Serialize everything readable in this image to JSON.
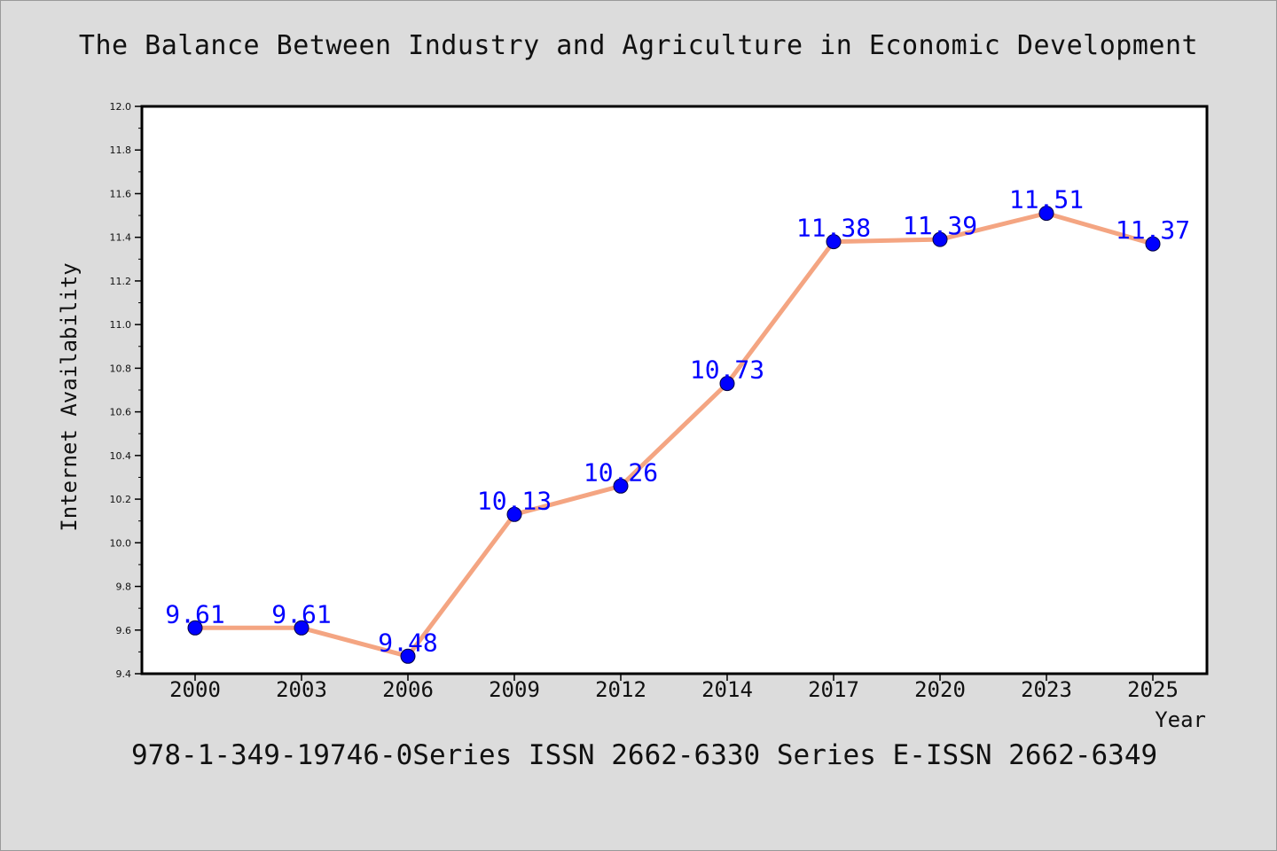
{
  "chart_data": {
    "type": "line",
    "title": "The Balance Between Industry and Agriculture in Economic Development",
    "xlabel": "Year",
    "ylabel": "Internet Availability",
    "categories": [
      "2000",
      "2003",
      "2006",
      "2009",
      "2012",
      "2014",
      "2017",
      "2020",
      "2023",
      "2025"
    ],
    "series": [
      {
        "values": [
          9.61,
          9.61,
          9.48,
          10.13,
          10.26,
          10.73,
          11.38,
          11.39,
          11.51,
          11.37
        ],
        "data_labels": [
          "9.61",
          "9.61",
          "9.48",
          "10.13",
          "10.26",
          "10.73",
          "11.38",
          "11.39",
          "11.51",
          "11.37"
        ],
        "line_color": "#f4a582",
        "marker_color": "#0000ff",
        "label_color": "#0000ff"
      }
    ],
    "ylim": [
      9.4,
      12.0
    ],
    "yticks": [
      "9.4",
      "9.6",
      "9.8",
      "10.0",
      "10.2",
      "10.4",
      "10.6",
      "10.8",
      "11.0",
      "11.2",
      "11.4",
      "11.6",
      "11.8",
      "12.0"
    ],
    "grid": false,
    "legend": "none"
  },
  "footer": {
    "note": "978-1-349-19746-0Series ISSN 2662-6330 Series E-ISSN 2662-6349"
  },
  "colors": {
    "background": "#dcdcdc",
    "plot_background": "#ffffff",
    "axis": "#000000"
  }
}
